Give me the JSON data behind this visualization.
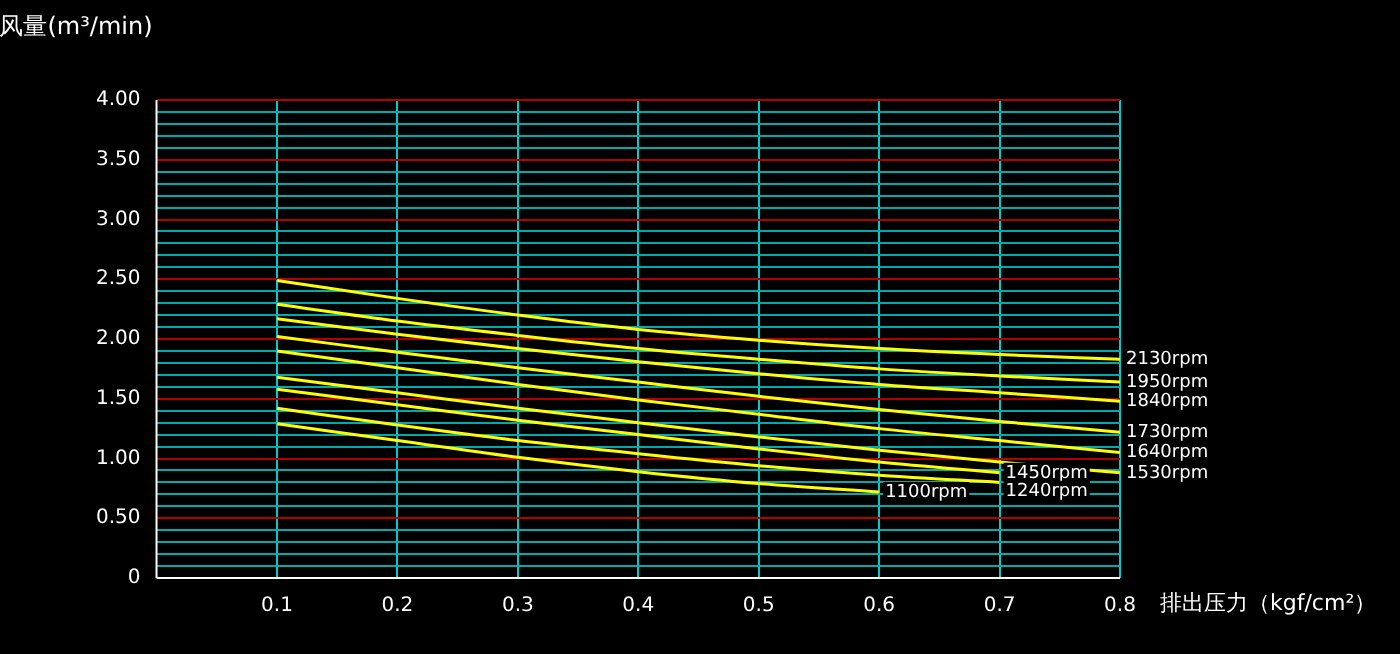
{
  "chart_data": {
    "type": "line",
    "xlabel": "排出压力（kgf/cm²）",
    "ylabel": "风量(m³/min)",
    "x": [
      0.1,
      0.2,
      0.3,
      0.4,
      0.5,
      0.6,
      0.7,
      0.8
    ],
    "xlim": [
      0,
      0.8
    ],
    "xticks": [
      0.1,
      0.2,
      0.3,
      0.4,
      0.5,
      0.6,
      0.7,
      0.8
    ],
    "ylim": [
      0,
      4
    ],
    "yticks": [
      {
        "value": 0,
        "label": "0"
      },
      {
        "value": 0.1,
        "label": null
      },
      {
        "value": 0.2,
        "label": null
      },
      {
        "value": 0.3,
        "label": null
      },
      {
        "value": 0.4,
        "label": null
      },
      {
        "value": 0.5,
        "label": "0.50"
      },
      {
        "value": 0.6,
        "label": null
      },
      {
        "value": 0.7,
        "label": null
      },
      {
        "value": 0.8,
        "label": null
      },
      {
        "value": 0.9,
        "label": null
      },
      {
        "value": 1,
        "label": "1.00"
      },
      {
        "value": 1.1,
        "label": null
      },
      {
        "value": 1.2,
        "label": null
      },
      {
        "value": 1.3,
        "label": null
      },
      {
        "value": 1.4,
        "label": null
      },
      {
        "value": 1.5,
        "label": "1.50"
      },
      {
        "value": 1.6,
        "label": null
      },
      {
        "value": 1.7,
        "label": null
      },
      {
        "value": 1.8,
        "label": null
      },
      {
        "value": 1.9,
        "label": null
      },
      {
        "value": 2,
        "label": "2.00"
      },
      {
        "value": 2.1,
        "label": null
      },
      {
        "value": 2.2,
        "label": null
      },
      {
        "value": 2.3,
        "label": null
      },
      {
        "value": 2.4,
        "label": null
      },
      {
        "value": 2.5,
        "label": "2.50"
      },
      {
        "value": 2.6,
        "label": null
      },
      {
        "value": 2.7,
        "label": null
      },
      {
        "value": 2.8,
        "label": null
      },
      {
        "value": 2.9,
        "label": null
      },
      {
        "value": 3,
        "label": "3.00"
      },
      {
        "value": 3.1,
        "label": null
      },
      {
        "value": 3.2,
        "label": null
      },
      {
        "value": 3.3,
        "label": null
      },
      {
        "value": 3.4,
        "label": null
      },
      {
        "value": 3.5,
        "label": "3.50"
      },
      {
        "value": 3.6,
        "label": null
      },
      {
        "value": 3.7,
        "label": null
      },
      {
        "value": 3.8,
        "label": null
      },
      {
        "value": 3.9,
        "label": null
      },
      {
        "value": 4,
        "label": "4.00"
      }
    ],
    "grid": true,
    "legend": false,
    "marker": "none",
    "line_style": "solid",
    "series": [
      {
        "name": "2130rpm",
        "color": "#ffff00",
        "values": [
          2.49,
          2.34,
          2.2,
          2.08,
          1.99,
          1.92,
          1.87,
          1.83
        ]
      },
      {
        "name": "1950rpm",
        "color": "#ffff00",
        "values": [
          2.29,
          2.15,
          2.03,
          1.92,
          1.83,
          1.75,
          1.69,
          1.64
        ]
      },
      {
        "name": "1840rpm",
        "color": "#ffff00",
        "values": [
          2.17,
          2.04,
          1.92,
          1.81,
          1.71,
          1.62,
          1.55,
          1.48
        ]
      },
      {
        "name": "1730rpm",
        "color": "#ffff00",
        "values": [
          2.02,
          1.89,
          1.76,
          1.64,
          1.52,
          1.41,
          1.31,
          1.22
        ]
      },
      {
        "name": "1640rpm",
        "color": "#ffff00",
        "values": [
          1.9,
          1.76,
          1.62,
          1.49,
          1.37,
          1.25,
          1.15,
          1.05
        ]
      },
      {
        "name": "1530rpm",
        "color": "#ffff00",
        "values": [
          1.68,
          1.55,
          1.42,
          1.3,
          1.18,
          1.07,
          0.97,
          0.88
        ]
      },
      {
        "name": "1450rpm",
        "color": "#ffff00",
        "values": [
          1.58,
          1.45,
          1.32,
          1.2,
          1.08,
          0.97,
          0.88,
          null
        ]
      },
      {
        "name": "1240rpm",
        "color": "#ffff00",
        "values": [
          1.42,
          1.28,
          1.15,
          1.04,
          0.94,
          0.86,
          0.8,
          null
        ]
      },
      {
        "name": "1100rpm",
        "color": "#ffff00",
        "values": [
          1.29,
          1.15,
          1.01,
          0.89,
          0.79,
          0.72,
          null,
          null
        ]
      }
    ]
  }
}
